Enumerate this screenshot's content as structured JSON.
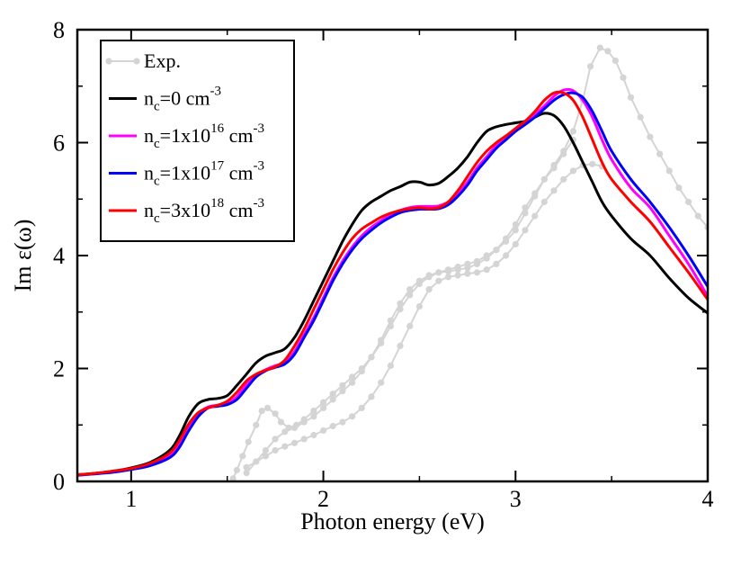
{
  "chart_data": {
    "type": "line",
    "xlabel": "Photon energy (eV)",
    "ylabel": "Im ε(ω)",
    "xlim": [
      0.72,
      4.0
    ],
    "ylim": [
      0,
      8
    ],
    "xticks": [
      1,
      2,
      3,
      4
    ],
    "yticks": [
      0,
      2,
      4,
      6,
      8
    ],
    "legend_position": "top-left",
    "series": [
      {
        "name": "Exp.",
        "legend_label": "Exp.",
        "color": "#d4d4d4",
        "marker": "circle",
        "segments": [
          [
            [
              1.53,
              0.05
            ],
            [
              1.55,
              0.2
            ],
            [
              1.58,
              0.45
            ],
            [
              1.61,
              0.7
            ],
            [
              1.65,
              1.0
            ],
            [
              1.68,
              1.25
            ],
            [
              1.71,
              1.3
            ],
            [
              1.75,
              1.2
            ],
            [
              1.78,
              1.05
            ],
            [
              1.82,
              0.95
            ],
            [
              1.86,
              1.0
            ],
            [
              1.9,
              1.1
            ],
            [
              1.95,
              1.25
            ],
            [
              2.0,
              1.4
            ],
            [
              2.05,
              1.55
            ],
            [
              2.1,
              1.7
            ],
            [
              2.15,
              1.85
            ],
            [
              2.2,
              2.0
            ],
            [
              2.25,
              2.2
            ],
            [
              2.3,
              2.45
            ],
            [
              2.35,
              2.75
            ],
            [
              2.4,
              3.05
            ],
            [
              2.45,
              3.3
            ],
            [
              2.5,
              3.5
            ],
            [
              2.55,
              3.62
            ],
            [
              2.6,
              3.7
            ],
            [
              2.65,
              3.75
            ],
            [
              2.7,
              3.8
            ],
            [
              2.75,
              3.85
            ],
            [
              2.8,
              3.9
            ],
            [
              2.85,
              4.0
            ],
            [
              2.9,
              4.1
            ],
            [
              2.95,
              4.25
            ],
            [
              3.0,
              4.45
            ],
            [
              3.05,
              4.75
            ],
            [
              3.1,
              5.05
            ],
            [
              3.15,
              5.35
            ],
            [
              3.2,
              5.6
            ],
            [
              3.25,
              5.85
            ],
            [
              3.3,
              6.2
            ],
            [
              3.35,
              6.75
            ],
            [
              3.39,
              7.35
            ],
            [
              3.44,
              7.68
            ],
            [
              3.48,
              7.62
            ],
            [
              3.52,
              7.45
            ],
            [
              3.56,
              7.15
            ],
            [
              3.6,
              6.8
            ],
            [
              3.65,
              6.45
            ],
            [
              3.7,
              6.1
            ],
            [
              3.75,
              5.8
            ],
            [
              3.8,
              5.5
            ],
            [
              3.85,
              5.2
            ],
            [
              3.9,
              4.95
            ],
            [
              3.95,
              4.7
            ],
            [
              4.0,
              4.5
            ]
          ],
          [
            [
              1.6,
              0.15
            ],
            [
              1.65,
              0.35
            ],
            [
              1.7,
              0.55
            ],
            [
              1.75,
              0.75
            ],
            [
              1.8,
              0.88
            ],
            [
              1.85,
              0.95
            ],
            [
              1.9,
              1.05
            ],
            [
              1.95,
              1.15
            ],
            [
              2.0,
              1.3
            ],
            [
              2.05,
              1.45
            ],
            [
              2.1,
              1.6
            ],
            [
              2.15,
              1.75
            ],
            [
              2.2,
              1.95
            ],
            [
              2.25,
              2.2
            ],
            [
              2.3,
              2.5
            ],
            [
              2.35,
              2.85
            ],
            [
              2.4,
              3.15
            ],
            [
              2.45,
              3.4
            ],
            [
              2.5,
              3.55
            ],
            [
              2.55,
              3.65
            ],
            [
              2.6,
              3.7
            ],
            [
              2.65,
              3.72
            ],
            [
              2.7,
              3.75
            ],
            [
              2.75,
              3.78
            ],
            [
              2.8,
              3.85
            ],
            [
              2.85,
              3.95
            ],
            [
              2.9,
              4.1
            ],
            [
              2.95,
              4.3
            ],
            [
              3.0,
              4.55
            ],
            [
              3.05,
              4.85
            ],
            [
              3.1,
              5.1
            ],
            [
              3.15,
              5.35
            ],
            [
              3.2,
              5.55
            ],
            [
              3.25,
              5.8
            ],
            [
              3.3,
              6.05
            ]
          ],
          [
            [
              1.6,
              0.25
            ],
            [
              1.65,
              0.35
            ],
            [
              1.7,
              0.45
            ],
            [
              1.75,
              0.55
            ],
            [
              1.8,
              0.62
            ],
            [
              1.85,
              0.68
            ],
            [
              1.9,
              0.75
            ],
            [
              1.95,
              0.82
            ],
            [
              2.0,
              0.9
            ],
            [
              2.05,
              0.98
            ],
            [
              2.1,
              1.05
            ],
            [
              2.15,
              1.15
            ],
            [
              2.2,
              1.3
            ],
            [
              2.25,
              1.5
            ],
            [
              2.3,
              1.75
            ],
            [
              2.35,
              2.05
            ],
            [
              2.4,
              2.4
            ],
            [
              2.45,
              2.75
            ],
            [
              2.5,
              3.1
            ],
            [
              2.55,
              3.4
            ],
            [
              2.6,
              3.55
            ],
            [
              2.65,
              3.62
            ],
            [
              2.7,
              3.65
            ],
            [
              2.75,
              3.68
            ],
            [
              2.8,
              3.7
            ],
            [
              2.85,
              3.75
            ],
            [
              2.9,
              3.85
            ],
            [
              2.95,
              4.0
            ],
            [
              3.0,
              4.2
            ],
            [
              3.05,
              4.45
            ],
            [
              3.1,
              4.7
            ],
            [
              3.15,
              4.95
            ],
            [
              3.2,
              5.15
            ],
            [
              3.25,
              5.35
            ],
            [
              3.3,
              5.5
            ],
            [
              3.35,
              5.6
            ],
            [
              3.4,
              5.62
            ],
            [
              3.45,
              5.58
            ]
          ]
        ]
      },
      {
        "name": "nc0",
        "legend_label": "n_c=0 cm^-3",
        "legend_base": "n",
        "legend_sub": "c",
        "legend_mid": "=0 cm",
        "legend_sup": "-3",
        "legend_sup2": "",
        "legend_mid2": "",
        "color": "#000000",
        "x": [
          0.72,
          0.8,
          0.9,
          1.0,
          1.1,
          1.2,
          1.25,
          1.3,
          1.35,
          1.4,
          1.45,
          1.5,
          1.55,
          1.6,
          1.65,
          1.7,
          1.75,
          1.8,
          1.85,
          1.9,
          1.95,
          2.0,
          2.05,
          2.1,
          2.15,
          2.2,
          2.25,
          2.3,
          2.35,
          2.4,
          2.45,
          2.5,
          2.55,
          2.6,
          2.65,
          2.7,
          2.75,
          2.8,
          2.85,
          2.9,
          2.95,
          3.0,
          3.05,
          3.1,
          3.15,
          3.2,
          3.25,
          3.3,
          3.35,
          3.4,
          3.45,
          3.5,
          3.6,
          3.7,
          3.8,
          3.9,
          4.0
        ],
        "y": [
          0.12,
          0.14,
          0.18,
          0.24,
          0.34,
          0.55,
          0.8,
          1.15,
          1.38,
          1.45,
          1.47,
          1.52,
          1.7,
          1.9,
          2.1,
          2.22,
          2.28,
          2.35,
          2.55,
          2.85,
          3.2,
          3.55,
          3.9,
          4.25,
          4.55,
          4.8,
          4.95,
          5.05,
          5.15,
          5.22,
          5.3,
          5.3,
          5.25,
          5.28,
          5.4,
          5.55,
          5.75,
          6.0,
          6.2,
          6.28,
          6.32,
          6.35,
          6.38,
          6.45,
          6.52,
          6.48,
          6.3,
          6.0,
          5.65,
          5.3,
          4.95,
          4.7,
          4.3,
          4.0,
          3.6,
          3.25,
          2.98
        ]
      },
      {
        "name": "nc1e16",
        "legend_label": "n_c=1x10^16 cm^-3",
        "legend_base": "n",
        "legend_sub": "c",
        "legend_mid": "=1x10",
        "legend_sup": "16",
        "legend_mid2": " cm",
        "legend_sup2": "-3",
        "color": "#ff00ff",
        "x": [
          0.72,
          0.8,
          0.9,
          1.0,
          1.1,
          1.2,
          1.25,
          1.3,
          1.35,
          1.4,
          1.45,
          1.5,
          1.55,
          1.6,
          1.65,
          1.7,
          1.75,
          1.8,
          1.85,
          1.9,
          1.95,
          2.0,
          2.05,
          2.1,
          2.15,
          2.2,
          2.25,
          2.3,
          2.35,
          2.4,
          2.45,
          2.5,
          2.55,
          2.6,
          2.65,
          2.7,
          2.75,
          2.8,
          2.85,
          2.9,
          2.95,
          3.0,
          3.05,
          3.1,
          3.15,
          3.2,
          3.25,
          3.3,
          3.35,
          3.4,
          3.45,
          3.5,
          3.6,
          3.7,
          3.8,
          3.9,
          4.0
        ],
        "y": [
          0.11,
          0.13,
          0.17,
          0.22,
          0.3,
          0.45,
          0.65,
          0.95,
          1.2,
          1.32,
          1.35,
          1.38,
          1.5,
          1.72,
          1.88,
          1.98,
          2.05,
          2.1,
          2.3,
          2.6,
          2.9,
          3.25,
          3.6,
          3.9,
          4.15,
          4.35,
          4.5,
          4.62,
          4.72,
          4.8,
          4.85,
          4.87,
          4.87,
          4.88,
          4.95,
          5.1,
          5.3,
          5.55,
          5.75,
          5.95,
          6.1,
          6.25,
          6.38,
          6.5,
          6.65,
          6.82,
          6.93,
          6.92,
          6.75,
          6.45,
          6.05,
          5.7,
          5.2,
          4.85,
          4.35,
          3.85,
          3.28
        ]
      },
      {
        "name": "nc1e17",
        "legend_label": "n_c=1x10^17 cm^-3",
        "legend_base": "n",
        "legend_sub": "c",
        "legend_mid": "=1x10",
        "legend_sup": "17",
        "legend_mid2": " cm",
        "legend_sup2": "-3",
        "color": "#0000ff",
        "x": [
          0.72,
          0.8,
          0.9,
          1.0,
          1.1,
          1.2,
          1.25,
          1.3,
          1.35,
          1.4,
          1.45,
          1.5,
          1.55,
          1.6,
          1.65,
          1.7,
          1.75,
          1.8,
          1.85,
          1.9,
          1.95,
          2.0,
          2.05,
          2.1,
          2.15,
          2.2,
          2.25,
          2.3,
          2.35,
          2.4,
          2.45,
          2.5,
          2.55,
          2.6,
          2.65,
          2.7,
          2.75,
          2.8,
          2.85,
          2.9,
          2.95,
          3.0,
          3.05,
          3.1,
          3.15,
          3.2,
          3.25,
          3.3,
          3.35,
          3.4,
          3.45,
          3.5,
          3.6,
          3.7,
          3.8,
          3.9,
          4.0
        ],
        "y": [
          0.11,
          0.13,
          0.16,
          0.21,
          0.28,
          0.42,
          0.6,
          0.9,
          1.15,
          1.3,
          1.33,
          1.36,
          1.45,
          1.65,
          1.85,
          1.96,
          2.02,
          2.08,
          2.25,
          2.55,
          2.85,
          3.2,
          3.55,
          3.85,
          4.1,
          4.3,
          4.45,
          4.58,
          4.68,
          4.76,
          4.8,
          4.82,
          4.82,
          4.83,
          4.9,
          5.05,
          5.25,
          5.5,
          5.7,
          5.9,
          6.05,
          6.2,
          6.32,
          6.45,
          6.6,
          6.75,
          6.85,
          6.88,
          6.8,
          6.55,
          6.2,
          5.85,
          5.35,
          4.95,
          4.5,
          4.0,
          3.45
        ]
      },
      {
        "name": "nc3e18",
        "legend_label": "n_c=3x10^18 cm^-3",
        "legend_base": "n",
        "legend_sub": "c",
        "legend_mid": "=3x10",
        "legend_sup": "18",
        "legend_mid2": " cm",
        "legend_sup2": "-3",
        "color": "#ff0000",
        "x": [
          0.72,
          0.8,
          0.9,
          1.0,
          1.1,
          1.2,
          1.25,
          1.3,
          1.35,
          1.4,
          1.45,
          1.5,
          1.55,
          1.6,
          1.65,
          1.7,
          1.75,
          1.8,
          1.85,
          1.9,
          1.95,
          2.0,
          2.05,
          2.1,
          2.15,
          2.2,
          2.25,
          2.3,
          2.35,
          2.4,
          2.45,
          2.5,
          2.55,
          2.6,
          2.65,
          2.7,
          2.75,
          2.8,
          2.85,
          2.9,
          2.95,
          3.0,
          3.05,
          3.1,
          3.15,
          3.2,
          3.25,
          3.3,
          3.35,
          3.4,
          3.45,
          3.5,
          3.6,
          3.7,
          3.8,
          3.9,
          4.0
        ],
        "y": [
          0.12,
          0.14,
          0.18,
          0.23,
          0.32,
          0.5,
          0.72,
          1.02,
          1.22,
          1.3,
          1.35,
          1.42,
          1.58,
          1.78,
          1.9,
          1.97,
          2.03,
          2.15,
          2.4,
          2.7,
          3.05,
          3.4,
          3.75,
          4.05,
          4.3,
          4.47,
          4.58,
          4.68,
          4.75,
          4.8,
          4.83,
          4.85,
          4.83,
          4.85,
          4.95,
          5.15,
          5.4,
          5.65,
          5.85,
          6.0,
          6.12,
          6.25,
          6.38,
          6.55,
          6.75,
          6.88,
          6.88,
          6.75,
          6.45,
          6.05,
          5.65,
          5.35,
          4.95,
          4.6,
          4.15,
          3.7,
          3.22
        ]
      }
    ]
  }
}
